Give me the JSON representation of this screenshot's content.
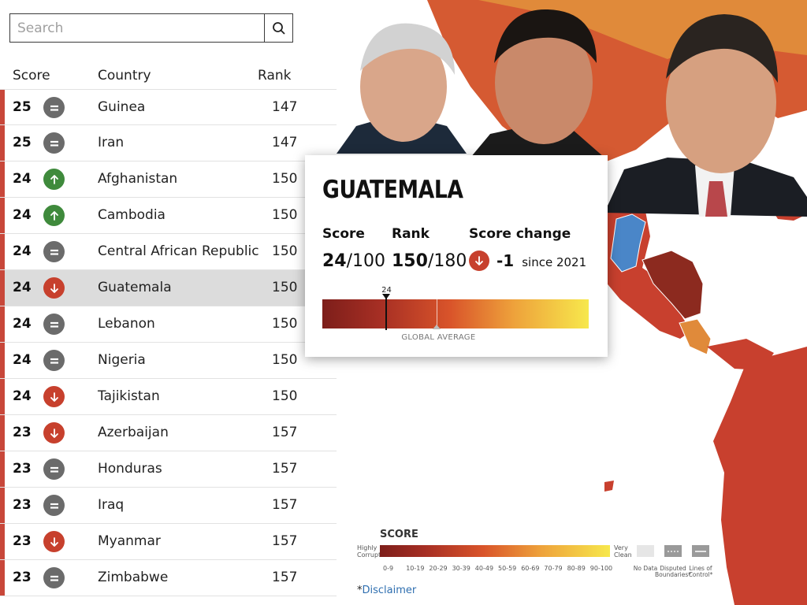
{
  "search": {
    "placeholder": "Search",
    "icon": "search-icon"
  },
  "columns": {
    "score": "Score",
    "country": "Country",
    "rank": "Rank"
  },
  "rows": [
    {
      "score": "25",
      "trend": "same",
      "country": "Guinea",
      "rank": "147"
    },
    {
      "score": "25",
      "trend": "same",
      "country": "Iran",
      "rank": "147"
    },
    {
      "score": "24",
      "trend": "up",
      "country": "Afghanistan",
      "rank": "150"
    },
    {
      "score": "24",
      "trend": "up",
      "country": "Cambodia",
      "rank": "150"
    },
    {
      "score": "24",
      "trend": "same",
      "country": "Central African Republic",
      "rank": "150"
    },
    {
      "score": "24",
      "trend": "down",
      "country": "Guatemala",
      "rank": "150",
      "selected": true
    },
    {
      "score": "24",
      "trend": "same",
      "country": "Lebanon",
      "rank": "150"
    },
    {
      "score": "24",
      "trend": "same",
      "country": "Nigeria",
      "rank": "150"
    },
    {
      "score": "24",
      "trend": "down",
      "country": "Tajikistan",
      "rank": "150"
    },
    {
      "score": "23",
      "trend": "down",
      "country": "Azerbaijan",
      "rank": "157"
    },
    {
      "score": "23",
      "trend": "same",
      "country": "Honduras",
      "rank": "157"
    },
    {
      "score": "23",
      "trend": "same",
      "country": "Iraq",
      "rank": "157"
    },
    {
      "score": "23",
      "trend": "down",
      "country": "Myanmar",
      "rank": "157"
    },
    {
      "score": "23",
      "trend": "same",
      "country": "Zimbabwe",
      "rank": "157"
    }
  ],
  "tooltip": {
    "title": "GUATEMALA",
    "score_label": "Score",
    "score_value": "24",
    "score_max": "/100",
    "rank_label": "Rank",
    "rank_value": "150",
    "rank_max": "/180",
    "change_label": "Score change",
    "change_value": "-1",
    "change_since": "since 2021",
    "marker_label": "24",
    "marker_score": 24,
    "average_label": "GLOBAL AVERAGE",
    "average_score": 43
  },
  "legend": {
    "title": "SCORE",
    "low": "Highly Corrupt",
    "high": "Very Clean",
    "ticks": [
      "0-9",
      "10-19",
      "20-29",
      "30-39",
      "40-49",
      "50-59",
      "60-69",
      "70-79",
      "80-89",
      "90-100"
    ],
    "no_data": "No Data",
    "disputed": "Disputed Boundaries*",
    "lines": "Lines of Control*"
  },
  "disclaimer": {
    "star": "*",
    "link": "Disclaimer"
  },
  "colors": {
    "accent_red": "#c8473a",
    "trend_up": "#3f8a3c",
    "trend_down": "#c7402d",
    "trend_same": "#6b6b6b",
    "selected_row": "#dcdcdc"
  }
}
